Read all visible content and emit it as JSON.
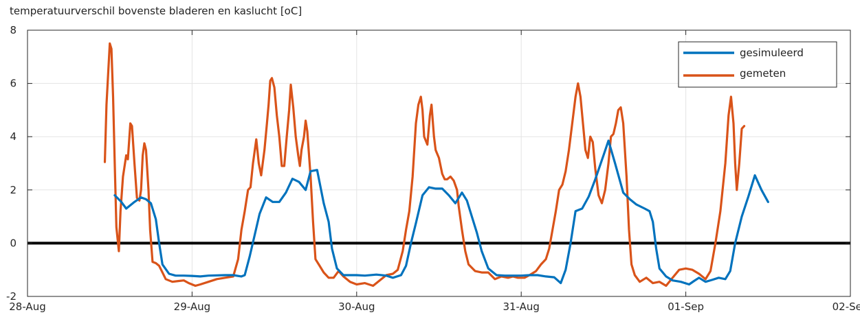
{
  "chart_data": {
    "type": "line",
    "title": "temperatuurverschil bovenste bladeren en kaslucht [oC]",
    "xlabel": "",
    "ylabel": "",
    "x_range_days": [
      28,
      33
    ],
    "xlim": [
      "28-Aug",
      "02-Sep"
    ],
    "ylim": [
      -2,
      8
    ],
    "x_ticks": [
      {
        "day": 28,
        "label": "28-Aug"
      },
      {
        "day": 29,
        "label": "29-Aug"
      },
      {
        "day": 30,
        "label": "30-Aug"
      },
      {
        "day": 31,
        "label": "31-Aug"
      },
      {
        "day": 32,
        "label": "01-Sep"
      },
      {
        "day": 33,
        "label": "02-Sep"
      }
    ],
    "y_ticks": [
      {
        "value": -2,
        "label": "-2"
      },
      {
        "value": 0,
        "label": "0"
      },
      {
        "value": 2,
        "label": "2"
      },
      {
        "value": 4,
        "label": "4"
      },
      {
        "value": 6,
        "label": "6"
      },
      {
        "value": 8,
        "label": "8"
      }
    ],
    "grid": true,
    "legend_position": "top-right",
    "reference_line": {
      "y": 0,
      "color": "#000000"
    },
    "series": [
      {
        "name": "gesimuleerd",
        "color": "#0072BD",
        "points": [
          [
            28.53,
            1.8
          ],
          [
            28.57,
            1.55
          ],
          [
            28.6,
            1.3
          ],
          [
            28.65,
            1.55
          ],
          [
            28.69,
            1.72
          ],
          [
            28.72,
            1.65
          ],
          [
            28.75,
            1.5
          ],
          [
            28.78,
            0.9
          ],
          [
            28.8,
            0.0
          ],
          [
            28.82,
            -0.8
          ],
          [
            28.86,
            -1.15
          ],
          [
            28.9,
            -1.22
          ],
          [
            28.95,
            -1.22
          ],
          [
            29.0,
            -1.23
          ],
          [
            29.05,
            -1.25
          ],
          [
            29.1,
            -1.22
          ],
          [
            29.2,
            -1.2
          ],
          [
            29.25,
            -1.2
          ],
          [
            29.3,
            -1.25
          ],
          [
            29.32,
            -1.2
          ],
          [
            29.35,
            -0.5
          ],
          [
            29.38,
            0.3
          ],
          [
            29.41,
            1.1
          ],
          [
            29.45,
            1.72
          ],
          [
            29.49,
            1.55
          ],
          [
            29.53,
            1.55
          ],
          [
            29.57,
            1.9
          ],
          [
            29.61,
            2.42
          ],
          [
            29.65,
            2.3
          ],
          [
            29.69,
            2.0
          ],
          [
            29.72,
            2.7
          ],
          [
            29.76,
            2.75
          ],
          [
            29.8,
            1.5
          ],
          [
            29.83,
            0.8
          ],
          [
            29.85,
            -0.2
          ],
          [
            29.88,
            -0.95
          ],
          [
            29.92,
            -1.2
          ],
          [
            30.0,
            -1.2
          ],
          [
            30.05,
            -1.22
          ],
          [
            30.12,
            -1.18
          ],
          [
            30.18,
            -1.22
          ],
          [
            30.22,
            -1.3
          ],
          [
            30.27,
            -1.2
          ],
          [
            30.3,
            -0.85
          ],
          [
            30.33,
            0.0
          ],
          [
            30.36,
            0.75
          ],
          [
            30.4,
            1.8
          ],
          [
            30.44,
            2.1
          ],
          [
            30.48,
            2.05
          ],
          [
            30.52,
            2.05
          ],
          [
            30.56,
            1.8
          ],
          [
            30.6,
            1.5
          ],
          [
            30.64,
            1.9
          ],
          [
            30.67,
            1.6
          ],
          [
            30.7,
            1.0
          ],
          [
            30.73,
            0.4
          ],
          [
            30.76,
            -0.3
          ],
          [
            30.8,
            -0.95
          ],
          [
            30.85,
            -1.2
          ],
          [
            30.9,
            -1.22
          ],
          [
            31.0,
            -1.22
          ],
          [
            31.05,
            -1.2
          ],
          [
            31.1,
            -1.2
          ],
          [
            31.15,
            -1.25
          ],
          [
            31.2,
            -1.28
          ],
          [
            31.24,
            -1.5
          ],
          [
            31.27,
            -1.0
          ],
          [
            31.3,
            0.0
          ],
          [
            31.33,
            1.2
          ],
          [
            31.37,
            1.3
          ],
          [
            31.41,
            1.75
          ],
          [
            31.45,
            2.4
          ],
          [
            31.5,
            3.3
          ],
          [
            31.53,
            3.85
          ],
          [
            31.57,
            3.0
          ],
          [
            31.62,
            1.9
          ],
          [
            31.66,
            1.65
          ],
          [
            31.7,
            1.45
          ],
          [
            31.75,
            1.3
          ],
          [
            31.78,
            1.2
          ],
          [
            31.8,
            0.8
          ],
          [
            31.82,
            -0.2
          ],
          [
            31.84,
            -0.95
          ],
          [
            31.88,
            -1.25
          ],
          [
            31.92,
            -1.4
          ],
          [
            31.97,
            -1.45
          ],
          [
            32.02,
            -1.55
          ],
          [
            32.05,
            -1.42
          ],
          [
            32.08,
            -1.3
          ],
          [
            32.12,
            -1.45
          ],
          [
            32.16,
            -1.38
          ],
          [
            32.2,
            -1.3
          ],
          [
            32.24,
            -1.35
          ],
          [
            32.27,
            -1.05
          ],
          [
            32.3,
            0.0
          ],
          [
            32.34,
            1.0
          ],
          [
            32.38,
            1.75
          ],
          [
            32.42,
            2.55
          ],
          [
            32.46,
            2.0
          ],
          [
            32.5,
            1.55
          ]
        ]
      },
      {
        "name": "gemeten",
        "color": "#D95319",
        "points": [
          [
            28.47,
            3.05
          ],
          [
            28.48,
            5.2
          ],
          [
            28.5,
            7.5
          ],
          [
            28.51,
            7.3
          ],
          [
            28.52,
            5.5
          ],
          [
            28.53,
            3.0
          ],
          [
            28.54,
            0.6
          ],
          [
            28.555,
            -0.3
          ],
          [
            28.565,
            1.2
          ],
          [
            28.58,
            2.5
          ],
          [
            28.6,
            3.3
          ],
          [
            28.61,
            3.15
          ],
          [
            28.625,
            4.5
          ],
          [
            28.635,
            4.4
          ],
          [
            28.65,
            3.0
          ],
          [
            28.665,
            1.7
          ],
          [
            28.68,
            1.6
          ],
          [
            28.69,
            2.0
          ],
          [
            28.7,
            3.3
          ],
          [
            28.71,
            3.75
          ],
          [
            28.72,
            3.5
          ],
          [
            28.735,
            2.0
          ],
          [
            28.745,
            0.5
          ],
          [
            28.76,
            -0.7
          ],
          [
            28.78,
            -0.75
          ],
          [
            28.8,
            -0.85
          ],
          [
            28.82,
            -1.1
          ],
          [
            28.84,
            -1.35
          ],
          [
            28.88,
            -1.45
          ],
          [
            28.92,
            -1.42
          ],
          [
            28.95,
            -1.4
          ],
          [
            28.98,
            -1.5
          ],
          [
            29.02,
            -1.6
          ],
          [
            29.05,
            -1.55
          ],
          [
            29.1,
            -1.45
          ],
          [
            29.15,
            -1.35
          ],
          [
            29.2,
            -1.3
          ],
          [
            29.25,
            -1.25
          ],
          [
            29.28,
            -0.6
          ],
          [
            29.3,
            0.5
          ],
          [
            29.32,
            1.2
          ],
          [
            29.34,
            2.0
          ],
          [
            29.355,
            2.1
          ],
          [
            29.37,
            3.0
          ],
          [
            29.39,
            3.9
          ],
          [
            29.405,
            3.0
          ],
          [
            29.42,
            2.55
          ],
          [
            29.44,
            3.5
          ],
          [
            29.455,
            4.5
          ],
          [
            29.465,
            5.2
          ],
          [
            29.475,
            6.1
          ],
          [
            29.485,
            6.2
          ],
          [
            29.5,
            5.85
          ],
          [
            29.515,
            4.8
          ],
          [
            29.53,
            4.0
          ],
          [
            29.545,
            2.9
          ],
          [
            29.56,
            2.9
          ],
          [
            29.575,
            4.0
          ],
          [
            29.59,
            5.0
          ],
          [
            29.6,
            5.95
          ],
          [
            29.615,
            5.1
          ],
          [
            29.63,
            4.0
          ],
          [
            29.645,
            3.3
          ],
          [
            29.655,
            2.9
          ],
          [
            29.665,
            3.5
          ],
          [
            29.68,
            4.0
          ],
          [
            29.69,
            4.6
          ],
          [
            29.7,
            4.2
          ],
          [
            29.72,
            2.5
          ],
          [
            29.735,
            0.8
          ],
          [
            29.75,
            -0.6
          ],
          [
            29.77,
            -0.8
          ],
          [
            29.8,
            -1.1
          ],
          [
            29.83,
            -1.3
          ],
          [
            29.86,
            -1.3
          ],
          [
            29.89,
            -1.05
          ],
          [
            29.92,
            -1.25
          ],
          [
            29.96,
            -1.45
          ],
          [
            30.0,
            -1.55
          ],
          [
            30.05,
            -1.5
          ],
          [
            30.1,
            -1.6
          ],
          [
            30.14,
            -1.4
          ],
          [
            30.18,
            -1.2
          ],
          [
            30.22,
            -1.15
          ],
          [
            30.25,
            -1.0
          ],
          [
            30.28,
            -0.3
          ],
          [
            30.3,
            0.5
          ],
          [
            30.32,
            1.2
          ],
          [
            30.34,
            2.5
          ],
          [
            30.36,
            4.5
          ],
          [
            30.375,
            5.2
          ],
          [
            30.39,
            5.5
          ],
          [
            30.4,
            5.0
          ],
          [
            30.41,
            4.0
          ],
          [
            30.43,
            3.7
          ],
          [
            30.445,
            4.8
          ],
          [
            30.455,
            5.2
          ],
          [
            30.47,
            4.0
          ],
          [
            30.48,
            3.5
          ],
          [
            30.5,
            3.2
          ],
          [
            30.52,
            2.6
          ],
          [
            30.535,
            2.4
          ],
          [
            30.55,
            2.4
          ],
          [
            30.57,
            2.5
          ],
          [
            30.59,
            2.35
          ],
          [
            30.61,
            2.0
          ],
          [
            30.62,
            1.4
          ],
          [
            30.64,
            0.5
          ],
          [
            30.66,
            -0.3
          ],
          [
            30.68,
            -0.8
          ],
          [
            30.72,
            -1.05
          ],
          [
            30.76,
            -1.1
          ],
          [
            30.8,
            -1.1
          ],
          [
            30.84,
            -1.35
          ],
          [
            30.88,
            -1.25
          ],
          [
            30.92,
            -1.3
          ],
          [
            30.95,
            -1.25
          ],
          [
            30.98,
            -1.3
          ],
          [
            31.02,
            -1.3
          ],
          [
            31.05,
            -1.2
          ],
          [
            31.09,
            -1.05
          ],
          [
            31.12,
            -0.8
          ],
          [
            31.15,
            -0.6
          ],
          [
            31.17,
            -0.2
          ],
          [
            31.19,
            0.5
          ],
          [
            31.21,
            1.2
          ],
          [
            31.23,
            2.0
          ],
          [
            31.25,
            2.2
          ],
          [
            31.27,
            2.7
          ],
          [
            31.29,
            3.5
          ],
          [
            31.31,
            4.5
          ],
          [
            31.33,
            5.5
          ],
          [
            31.345,
            6.0
          ],
          [
            31.36,
            5.5
          ],
          [
            31.375,
            4.5
          ],
          [
            31.39,
            3.5
          ],
          [
            31.405,
            3.2
          ],
          [
            31.42,
            4.0
          ],
          [
            31.435,
            3.8
          ],
          [
            31.45,
            2.8
          ],
          [
            31.47,
            1.8
          ],
          [
            31.49,
            1.5
          ],
          [
            31.51,
            2.0
          ],
          [
            31.53,
            3.0
          ],
          [
            31.545,
            4.0
          ],
          [
            31.56,
            4.1
          ],
          [
            31.575,
            4.5
          ],
          [
            31.59,
            5.0
          ],
          [
            31.605,
            5.1
          ],
          [
            31.62,
            4.5
          ],
          [
            31.64,
            2.5
          ],
          [
            31.655,
            0.5
          ],
          [
            31.67,
            -0.8
          ],
          [
            31.69,
            -1.2
          ],
          [
            31.72,
            -1.45
          ],
          [
            31.76,
            -1.3
          ],
          [
            31.8,
            -1.5
          ],
          [
            31.84,
            -1.45
          ],
          [
            31.88,
            -1.6
          ],
          [
            31.92,
            -1.3
          ],
          [
            31.96,
            -1.0
          ],
          [
            32.0,
            -0.95
          ],
          [
            32.04,
            -1.0
          ],
          [
            32.08,
            -1.15
          ],
          [
            32.12,
            -1.35
          ],
          [
            32.15,
            -1.05
          ],
          [
            32.18,
            0.0
          ],
          [
            32.21,
            1.2
          ],
          [
            32.24,
            3.0
          ],
          [
            32.26,
            4.8
          ],
          [
            32.275,
            5.5
          ],
          [
            32.29,
            4.5
          ],
          [
            32.3,
            3.0
          ],
          [
            32.31,
            2.0
          ],
          [
            32.325,
            3.0
          ],
          [
            32.34,
            4.3
          ],
          [
            32.355,
            4.4
          ]
        ]
      }
    ]
  }
}
